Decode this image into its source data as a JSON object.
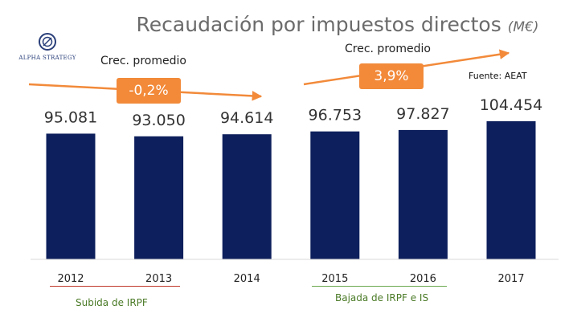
{
  "chart_data": {
    "type": "bar",
    "title": "Recaudación por impuestos directos",
    "title_unit": "(M€)",
    "categories": [
      "2012",
      "2013",
      "2014",
      "2015",
      "2016",
      "2017"
    ],
    "values": [
      95081,
      93050,
      94614,
      96753,
      97827,
      104454
    ],
    "value_labels": [
      "95.081",
      "93.050",
      "94.614",
      "96.753",
      "97.827",
      "104.454"
    ],
    "xlabel": "",
    "ylabel": "",
    "ylim": [
      0,
      104454
    ],
    "grid": false,
    "bar_color": "#0d1f5c",
    "annotations": [
      {
        "label": "Crec. promedio",
        "value": "-0,2%",
        "from": "2012",
        "to": "2014",
        "direction": "down"
      },
      {
        "label": "Crec. promedio",
        "value": "3,9%",
        "from": "2015",
        "to": "2017",
        "direction": "up"
      }
    ],
    "groups": [
      {
        "label": "Subida de IRPF",
        "categories": [
          "2012",
          "2013"
        ],
        "color": "#c0392b"
      },
      {
        "label": "Bajada de IRPF e IS",
        "categories": [
          "2015",
          "2016"
        ],
        "color": "#6aa84f"
      }
    ],
    "source": "Fuente: AEAT"
  },
  "logo": {
    "text": "ALPHA STRATEGY"
  },
  "colors": {
    "accent": "#f28a3a",
    "title": "#6b6b6b",
    "bar": "#0d1f5c"
  }
}
